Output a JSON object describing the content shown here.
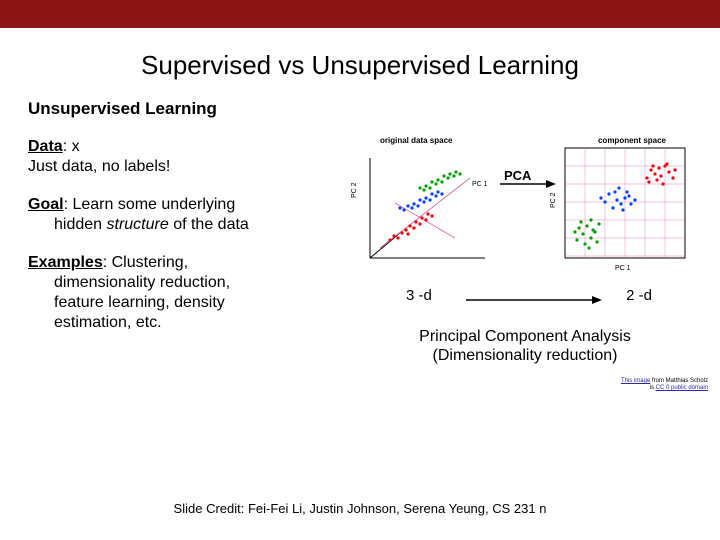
{
  "colors": {
    "top_bar": "#8c1515",
    "text": "#000000",
    "link": "#2a2aaa",
    "pt_red": "#ff0000",
    "pt_blue": "#0040ff",
    "pt_green": "#00a000",
    "axis": "#000000",
    "grid": "#d96fae",
    "pc_line": "#d96fae"
  },
  "title": "Supervised vs Unsupervised Learning",
  "subtitle": "Unsupervised Learning",
  "data_block": {
    "label": "Data",
    "value": ": x",
    "line2": "Just data, no labels!"
  },
  "goal_block": {
    "label": "Goal",
    "line1_a": ": Learn some underlying",
    "line2_a": "hidden ",
    "line2_ital": "structure",
    "line2_b": " of the data"
  },
  "examples_block": {
    "label": "Examples",
    "line1": ": Clustering,",
    "line2": "dimensionality reduction,",
    "line3": "feature learning, density",
    "line4": "estimation, etc."
  },
  "figure": {
    "top_left_label": "original data space",
    "top_right_label": "component space",
    "center_label": "PCA",
    "left_axes": {
      "y": "PC 2",
      "x": "PC 1",
      "z": ""
    },
    "right_axes": {
      "y": "PC 2",
      "x": "PC 1"
    },
    "dim_left": "3 -d",
    "dim_right": "2 -d",
    "arrow_length": 130,
    "caption_line1": "Principal Component Analysis",
    "caption_line2": "(Dimensionality reduction)",
    "left_scatter": {
      "type": "scatter-3d-projected",
      "red": [
        [
          30,
          92
        ],
        [
          34,
          88
        ],
        [
          38,
          90
        ],
        [
          42,
          85
        ],
        [
          46,
          82
        ],
        [
          48,
          86
        ],
        [
          50,
          78
        ],
        [
          54,
          80
        ],
        [
          56,
          74
        ],
        [
          60,
          76
        ],
        [
          62,
          70
        ],
        [
          66,
          72
        ],
        [
          68,
          66
        ],
        [
          72,
          68
        ]
      ],
      "blue": [
        [
          40,
          60
        ],
        [
          44,
          62
        ],
        [
          48,
          58
        ],
        [
          52,
          60
        ],
        [
          54,
          56
        ],
        [
          58,
          58
        ],
        [
          60,
          52
        ],
        [
          64,
          54
        ],
        [
          66,
          50
        ],
        [
          70,
          52
        ],
        [
          72,
          46
        ],
        [
          76,
          48
        ],
        [
          78,
          44
        ],
        [
          82,
          46
        ]
      ],
      "green": [
        [
          60,
          40
        ],
        [
          64,
          42
        ],
        [
          66,
          38
        ],
        [
          70,
          40
        ],
        [
          72,
          34
        ],
        [
          76,
          36
        ],
        [
          78,
          32
        ],
        [
          82,
          34
        ],
        [
          84,
          28
        ],
        [
          88,
          30
        ],
        [
          90,
          26
        ],
        [
          94,
          28
        ],
        [
          96,
          24
        ],
        [
          100,
          26
        ]
      ]
    },
    "right_scatter": {
      "type": "scatter-2d",
      "grid": {
        "xlim": [
          0,
          120
        ],
        "ylim": [
          0,
          110
        ],
        "xstep": 20,
        "ystep": 18
      },
      "red": [
        [
          86,
          22
        ],
        [
          94,
          20
        ],
        [
          82,
          30
        ],
        [
          96,
          28
        ],
        [
          100,
          18
        ],
        [
          90,
          26
        ],
        [
          104,
          24
        ],
        [
          110,
          22
        ],
        [
          84,
          34
        ],
        [
          92,
          32
        ],
        [
          108,
          30
        ],
        [
          102,
          16
        ],
        [
          88,
          18
        ],
        [
          98,
          36
        ]
      ],
      "blue": [
        [
          44,
          46
        ],
        [
          50,
          44
        ],
        [
          52,
          52
        ],
        [
          60,
          50
        ],
        [
          56,
          56
        ],
        [
          64,
          48
        ],
        [
          40,
          54
        ],
        [
          48,
          60
        ],
        [
          58,
          62
        ],
        [
          66,
          56
        ],
        [
          70,
          52
        ],
        [
          36,
          50
        ],
        [
          62,
          44
        ],
        [
          54,
          40
        ]
      ],
      "green": [
        [
          14,
          80
        ],
        [
          18,
          86
        ],
        [
          22,
          78
        ],
        [
          26,
          90
        ],
        [
          30,
          84
        ],
        [
          12,
          92
        ],
        [
          20,
          96
        ],
        [
          28,
          82
        ],
        [
          16,
          74
        ],
        [
          24,
          100
        ],
        [
          32,
          94
        ],
        [
          10,
          84
        ],
        [
          34,
          76
        ],
        [
          26,
          72
        ]
      ]
    }
  },
  "microcredit": {
    "line1_link": "This image",
    "line1_rest": " from Matthias Scholz",
    "line2_a": "is ",
    "line2_link": "CC 0 public domain"
  },
  "footer": "Slide Credit: Fei-Fei Li, Justin Johnson, Serena Yeung, CS 231 n"
}
